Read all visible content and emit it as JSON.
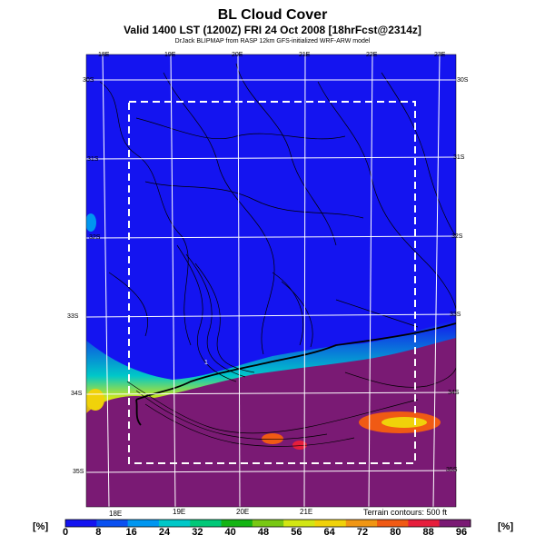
{
  "header": {
    "title": "BL Cloud Cover",
    "subtitle": "Valid 1400 LST (1200Z) FRI 24 Oct 2008 [18hrFcst@2314z]",
    "credit": "DrJack BLIPMAP from RASP 12km GFS-initialized WRF-ARW model"
  },
  "map": {
    "top_lon_labels": [
      "18E",
      "19E",
      "20E",
      "21E",
      "22E",
      "23E"
    ],
    "bottom_lon_labels": [
      "18E",
      "19E",
      "20E",
      "21E"
    ],
    "right_lat_labels": [
      "30S",
      "31S",
      "32S",
      "33S",
      "34S",
      "35S"
    ],
    "left_lat_labels": [
      "30S",
      "31S",
      "32S",
      "33S",
      "34S",
      "35S"
    ],
    "marker_label": "1",
    "contour_note": "Terrain contours: 500 ft"
  },
  "colorbar": {
    "unit_left": "[%]",
    "unit_right": "[%]",
    "ticks": [
      "0",
      "8",
      "16",
      "24",
      "32",
      "40",
      "48",
      "56",
      "64",
      "72",
      "80",
      "88",
      "96"
    ],
    "colors": [
      "#1414f0",
      "#0a50f0",
      "#0096f0",
      "#00c8c8",
      "#00c878",
      "#14b414",
      "#78c814",
      "#d2e614",
      "#f0d20a",
      "#f09614",
      "#f05a14",
      "#e61e3c",
      "#7a1a74"
    ]
  }
}
